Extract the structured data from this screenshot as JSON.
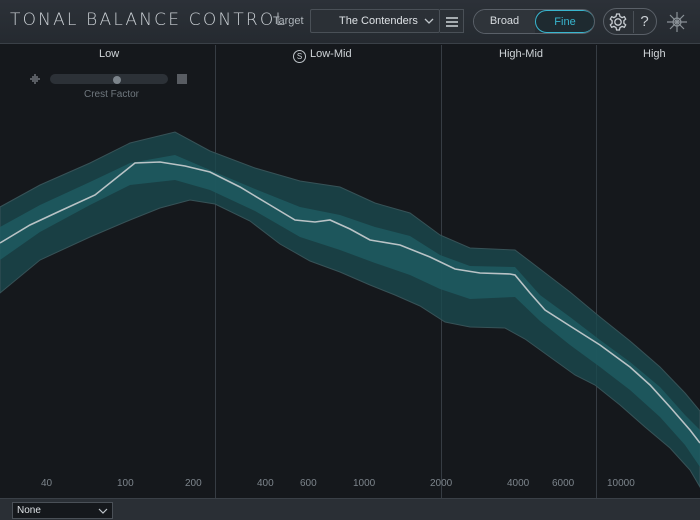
{
  "header": {
    "app_title": "TONAL BALANCE CONTROL",
    "target_label": "Target",
    "target_value": "The Contenders",
    "broad_label": "Broad",
    "fine_label": "Fine",
    "help_label": "?"
  },
  "bands": {
    "low": "Low",
    "low_mid": "Low-Mid",
    "solo": "S",
    "high_mid": "High-Mid",
    "high": "High"
  },
  "crest": {
    "label": "Crest Factor"
  },
  "frequencies": [
    "40",
    "100",
    "200",
    "400",
    "600",
    "1000",
    "2000",
    "4000",
    "6000",
    "10000"
  ],
  "footer": {
    "select_value": "None"
  },
  "colors": {
    "accent": "#38b6cf",
    "band_fill": "#1e4a50",
    "curve": "#b9c3c6"
  }
}
